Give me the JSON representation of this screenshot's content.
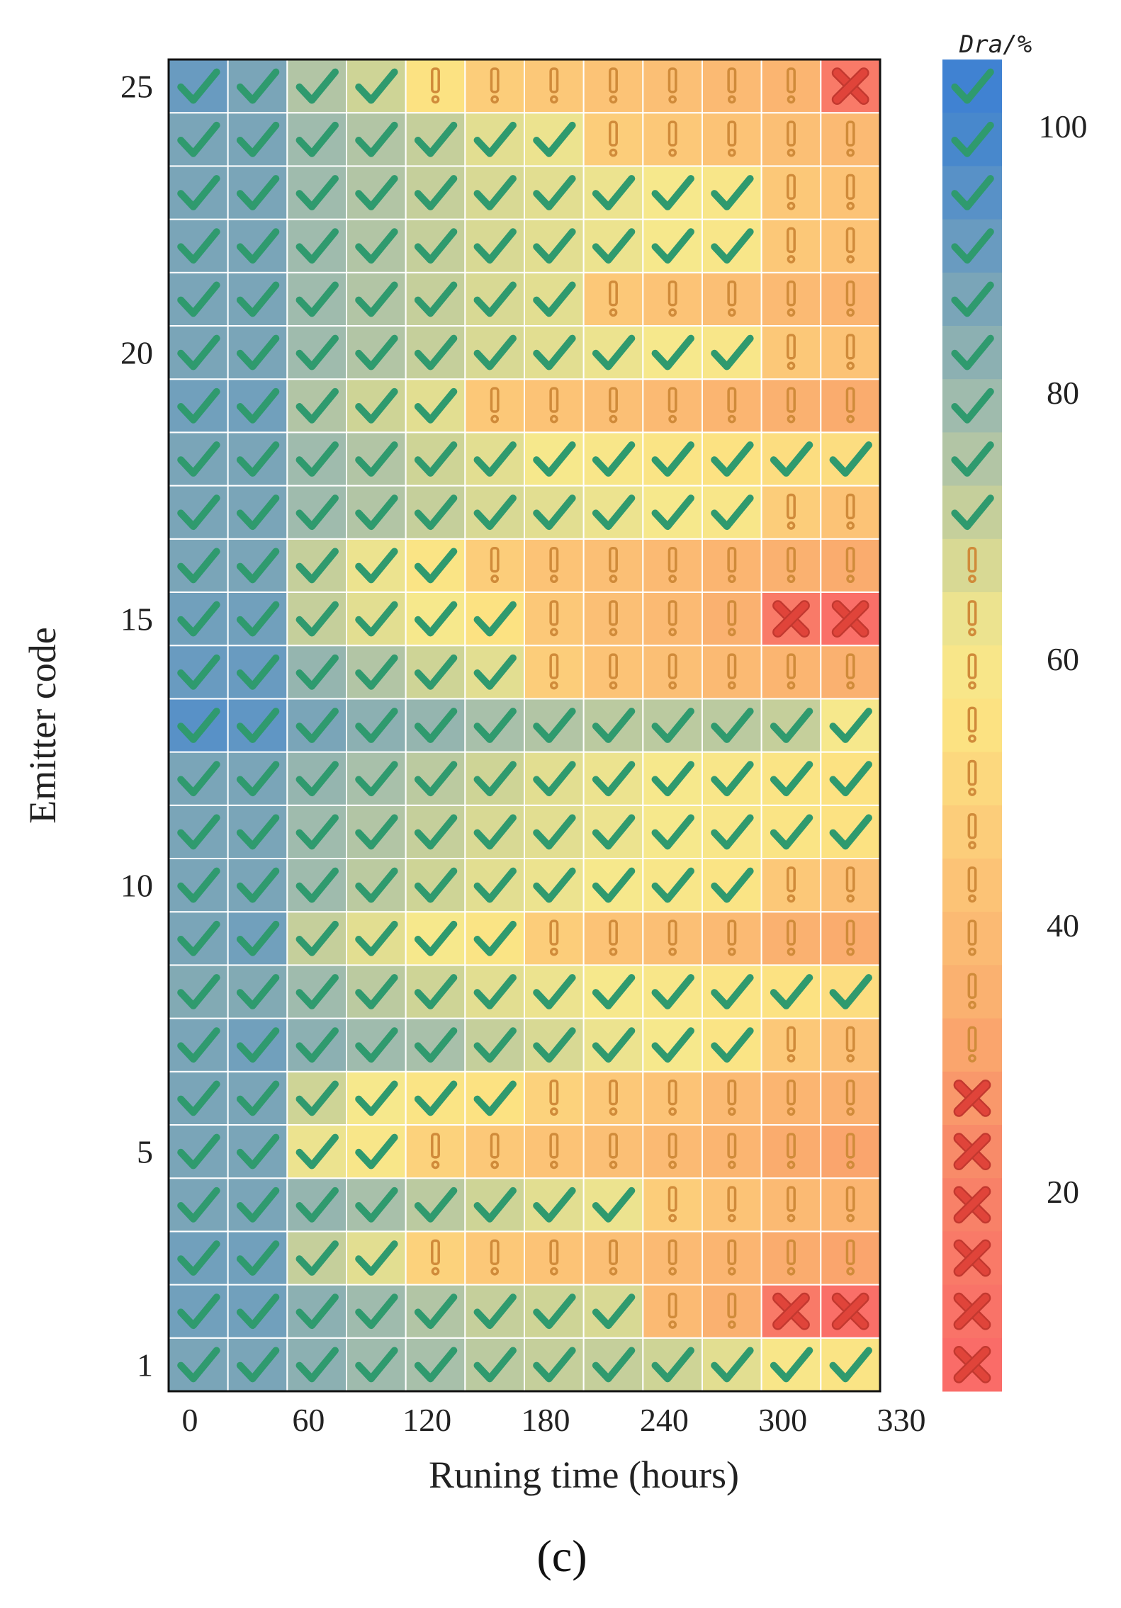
{
  "chart_data": {
    "type": "heatmap",
    "xlabel": "Runing time (hours)",
    "ylabel": "Emitter code",
    "x_tick_labels": [
      "0",
      "60",
      "120",
      "180",
      "240",
      "300",
      "330"
    ],
    "y_tick_labels": [
      "1",
      "5",
      "10",
      "15",
      "20",
      "25"
    ],
    "columns": 12,
    "rows": 25,
    "symbols_legend": {
      "check": "good",
      "warn": "caution",
      "cross": "clogged"
    },
    "grid": [
      [
        "c",
        "c",
        "c",
        "c",
        "c",
        "c",
        "c",
        "c",
        "c",
        "c",
        "c",
        "c"
      ],
      [
        "c",
        "c",
        "c",
        "c",
        "c",
        "c",
        "c",
        "c",
        "w",
        "w",
        "x",
        "x"
      ],
      [
        "c",
        "c",
        "c",
        "c",
        "w",
        "w",
        "w",
        "w",
        "w",
        "w",
        "w",
        "w"
      ],
      [
        "c",
        "c",
        "c",
        "c",
        "c",
        "c",
        "c",
        "c",
        "w",
        "w",
        "w",
        "w"
      ],
      [
        "c",
        "c",
        "c",
        "c",
        "w",
        "w",
        "w",
        "w",
        "w",
        "w",
        "w",
        "w"
      ],
      [
        "c",
        "c",
        "c",
        "c",
        "c",
        "c",
        "w",
        "w",
        "w",
        "w",
        "w",
        "w"
      ],
      [
        "c",
        "c",
        "c",
        "c",
        "c",
        "c",
        "c",
        "c",
        "c",
        "c",
        "w",
        "w"
      ],
      [
        "c",
        "c",
        "c",
        "c",
        "c",
        "c",
        "c",
        "c",
        "c",
        "c",
        "c",
        "c"
      ],
      [
        "c",
        "c",
        "c",
        "c",
        "c",
        "c",
        "w",
        "w",
        "w",
        "w",
        "w",
        "w"
      ],
      [
        "c",
        "c",
        "c",
        "c",
        "c",
        "c",
        "c",
        "c",
        "c",
        "c",
        "w",
        "w"
      ],
      [
        "c",
        "c",
        "c",
        "c",
        "c",
        "c",
        "c",
        "c",
        "c",
        "c",
        "c",
        "c"
      ],
      [
        "c",
        "c",
        "c",
        "c",
        "c",
        "c",
        "c",
        "c",
        "c",
        "c",
        "c",
        "c"
      ],
      [
        "c",
        "c",
        "c",
        "c",
        "c",
        "c",
        "c",
        "c",
        "c",
        "c",
        "c",
        "c"
      ],
      [
        "c",
        "c",
        "c",
        "c",
        "c",
        "c",
        "w",
        "w",
        "w",
        "w",
        "w",
        "w"
      ],
      [
        "c",
        "c",
        "c",
        "c",
        "c",
        "c",
        "w",
        "w",
        "w",
        "w",
        "x",
        "x"
      ],
      [
        "c",
        "c",
        "c",
        "c",
        "c",
        "w",
        "w",
        "w",
        "w",
        "w",
        "w",
        "w"
      ],
      [
        "c",
        "c",
        "c",
        "c",
        "c",
        "c",
        "c",
        "c",
        "c",
        "c",
        "w",
        "w"
      ],
      [
        "c",
        "c",
        "c",
        "c",
        "c",
        "c",
        "c",
        "c",
        "c",
        "c",
        "c",
        "c"
      ],
      [
        "c",
        "c",
        "c",
        "c",
        "c",
        "w",
        "w",
        "w",
        "w",
        "w",
        "w",
        "w"
      ],
      [
        "c",
        "c",
        "c",
        "c",
        "c",
        "c",
        "c",
        "c",
        "c",
        "c",
        "w",
        "w"
      ],
      [
        "c",
        "c",
        "c",
        "c",
        "c",
        "c",
        "c",
        "w",
        "w",
        "w",
        "w",
        "w"
      ],
      [
        "c",
        "c",
        "c",
        "c",
        "c",
        "c",
        "c",
        "c",
        "c",
        "c",
        "w",
        "w"
      ],
      [
        "c",
        "c",
        "c",
        "c",
        "c",
        "c",
        "c",
        "c",
        "c",
        "c",
        "w",
        "w"
      ],
      [
        "c",
        "c",
        "c",
        "c",
        "c",
        "c",
        "c",
        "w",
        "w",
        "w",
        "w",
        "w"
      ],
      [
        "c",
        "c",
        "c",
        "c",
        "w",
        "w",
        "w",
        "w",
        "w",
        "w",
        "w",
        "x"
      ]
    ],
    "values": [
      [
        88,
        88,
        84,
        80,
        78,
        74,
        72,
        72,
        70,
        66,
        60,
        58
      ],
      [
        90,
        90,
        84,
        80,
        76,
        72,
        70,
        68,
        40,
        36,
        16,
        10
      ],
      [
        90,
        90,
        72,
        66,
        50,
        46,
        44,
        42,
        40,
        38,
        34,
        32
      ],
      [
        88,
        88,
        82,
        78,
        74,
        70,
        66,
        64,
        48,
        44,
        40,
        38
      ],
      [
        88,
        88,
        64,
        60,
        50,
        46,
        44,
        42,
        40,
        38,
        34,
        32
      ],
      [
        88,
        88,
        70,
        62,
        58,
        56,
        50,
        46,
        44,
        40,
        38,
        36
      ],
      [
        88,
        90,
        84,
        80,
        78,
        72,
        68,
        64,
        62,
        58,
        46,
        42
      ],
      [
        86,
        86,
        80,
        74,
        70,
        66,
        64,
        62,
        60,
        58,
        56,
        54
      ],
      [
        88,
        90,
        72,
        66,
        62,
        58,
        48,
        44,
        42,
        40,
        36,
        34
      ],
      [
        88,
        88,
        80,
        74,
        70,
        66,
        64,
        62,
        60,
        58,
        46,
        42
      ],
      [
        88,
        88,
        80,
        76,
        72,
        68,
        66,
        64,
        62,
        60,
        58,
        56
      ],
      [
        88,
        88,
        82,
        78,
        74,
        70,
        66,
        64,
        62,
        60,
        58,
        56
      ],
      [
        96,
        94,
        88,
        84,
        82,
        78,
        76,
        74,
        74,
        74,
        72,
        62
      ],
      [
        92,
        92,
        82,
        76,
        70,
        66,
        48,
        44,
        42,
        40,
        38,
        36
      ],
      [
        90,
        90,
        72,
        66,
        62,
        56,
        46,
        42,
        40,
        36,
        16,
        10
      ],
      [
        88,
        88,
        72,
        64,
        58,
        48,
        44,
        42,
        40,
        38,
        36,
        34
      ],
      [
        88,
        88,
        80,
        76,
        72,
        68,
        66,
        64,
        62,
        60,
        48,
        44
      ],
      [
        88,
        88,
        80,
        76,
        70,
        66,
        62,
        60,
        58,
        56,
        54,
        54
      ],
      [
        90,
        90,
        76,
        70,
        66,
        46,
        44,
        42,
        40,
        38,
        36,
        34
      ],
      [
        88,
        88,
        80,
        76,
        72,
        68,
        66,
        64,
        62,
        60,
        46,
        44
      ],
      [
        88,
        88,
        80,
        76,
        72,
        68,
        66,
        46,
        44,
        42,
        40,
        38
      ],
      [
        88,
        88,
        80,
        76,
        72,
        68,
        66,
        64,
        62,
        60,
        46,
        44
      ],
      [
        88,
        88,
        80,
        76,
        72,
        68,
        66,
        64,
        62,
        60,
        46,
        44
      ],
      [
        88,
        88,
        80,
        76,
        72,
        66,
        64,
        48,
        46,
        44,
        42,
        40
      ],
      [
        92,
        88,
        76,
        70,
        56,
        48,
        46,
        44,
        42,
        40,
        38,
        16
      ]
    ],
    "colorbar": {
      "title": "Dra/%",
      "tick_labels": [
        "20",
        "40",
        "60",
        "80",
        "100"
      ],
      "tick_values": [
        20,
        40,
        60,
        80,
        100
      ],
      "range": [
        5,
        105
      ],
      "segments": [
        {
          "value": 104,
          "symbol": "c"
        },
        {
          "value": 100,
          "symbol": "c"
        },
        {
          "value": 96,
          "symbol": "c"
        },
        {
          "value": 92,
          "symbol": "c"
        },
        {
          "value": 88,
          "symbol": "c"
        },
        {
          "value": 84,
          "symbol": "c"
        },
        {
          "value": 80,
          "symbol": "c"
        },
        {
          "value": 76,
          "symbol": "c"
        },
        {
          "value": 72,
          "symbol": "c"
        },
        {
          "value": 68,
          "symbol": "w"
        },
        {
          "value": 64,
          "symbol": "w"
        },
        {
          "value": 60,
          "symbol": "w"
        },
        {
          "value": 56,
          "symbol": "w"
        },
        {
          "value": 52,
          "symbol": "w"
        },
        {
          "value": 48,
          "symbol": "w"
        },
        {
          "value": 44,
          "symbol": "w"
        },
        {
          "value": 40,
          "symbol": "w"
        },
        {
          "value": 36,
          "symbol": "w"
        },
        {
          "value": 32,
          "symbol": "w"
        },
        {
          "value": 28,
          "symbol": "x"
        },
        {
          "value": 24,
          "symbol": "x"
        },
        {
          "value": 20,
          "symbol": "x"
        },
        {
          "value": 16,
          "symbol": "x"
        },
        {
          "value": 12,
          "symbol": "x"
        },
        {
          "value": 8,
          "symbol": "x"
        }
      ]
    },
    "panel_label": "(c)",
    "colors": {
      "check": "#2f9a6e",
      "warn": "#d08b3a",
      "cross": "#e0443a"
    }
  }
}
